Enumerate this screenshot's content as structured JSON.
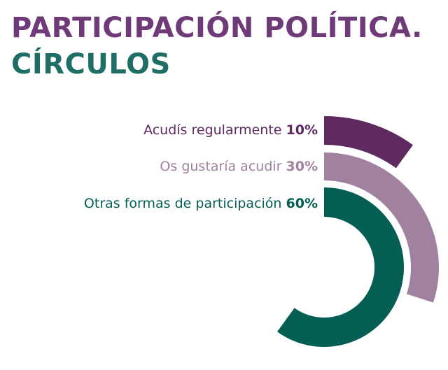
{
  "header": {
    "title_line1": "PARTICIPACIÓN POLÍTICA.",
    "title_line2": "CÍRCULOS"
  },
  "colors": {
    "title_purple": "#6e3a78",
    "title_green": "#1f6e66",
    "dark_purple": "#5e2a60",
    "light_purple": "#a0819f",
    "green": "#045e53"
  },
  "legend": [
    {
      "label": "Acudís regularmente",
      "value": "10%",
      "color": "#5e2a60"
    },
    {
      "label": "Os gustaría acudir",
      "value": "30%",
      "color": "#a0819f"
    },
    {
      "label": "Otras formas de participación",
      "value": "60%",
      "color": "#045e53"
    }
  ],
  "chart_data": {
    "type": "radial-bar",
    "title": "PARTICIPACIÓN POLÍTICA. CÍRCULOS",
    "categories": [
      "Acudís regularmente",
      "Os gustaría acudir",
      "Otras formas de participación"
    ],
    "values": [
      10,
      30,
      60
    ],
    "unit": "%",
    "max": 100,
    "colors": [
      "#5e2a60",
      "#a0819f",
      "#045e53"
    ],
    "legend_position": "left-of-arcs"
  }
}
